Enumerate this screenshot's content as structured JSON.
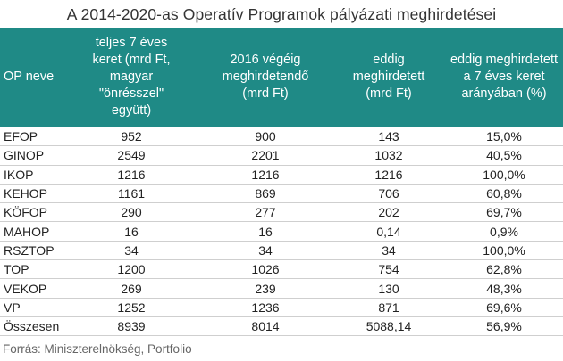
{
  "title": "A 2014-2020-as Operatív Programok pályázati meghirdetései",
  "headers": [
    "OP neve",
    "teljes 7 éves keret (mrd Ft, magyar \"önrésszel\" együtt)",
    "2016 végéig meghirdetendő (mrd Ft)",
    "eddig meghirdetett (mrd Ft)",
    "eddig meghirdetett a 7 éves keret arányában (%)"
  ],
  "rows": [
    [
      "EFOP",
      "952",
      "900",
      "143",
      "15,0%"
    ],
    [
      "GINOP",
      "2549",
      "2201",
      "1032",
      "40,5%"
    ],
    [
      "IKOP",
      "1216",
      "1216",
      "1216",
      "100,0%"
    ],
    [
      "KEHOP",
      "1161",
      "869",
      "706",
      "60,8%"
    ],
    [
      "KÖFOP",
      "290",
      "277",
      "202",
      "69,7%"
    ],
    [
      "MAHOP",
      "16",
      "16",
      "0,14",
      "0,9%"
    ],
    [
      "RSZTOP",
      "34",
      "34",
      "34",
      "100,0%"
    ],
    [
      "TOP",
      "1200",
      "1026",
      "754",
      "62,8%"
    ],
    [
      "VEKOP",
      "269",
      "239",
      "130",
      "48,3%"
    ],
    [
      "VP",
      "1252",
      "1236",
      "871",
      "69,6%"
    ],
    [
      "Összesen",
      "8939",
      "8014",
      "5088,14",
      "56,9%"
    ]
  ],
  "source": "Forrás: Miniszterelnökség, Portfolio",
  "colors": {
    "header_bg": "#1f8a86",
    "header_text": "#ffffff",
    "divider": "#cfcfcf"
  }
}
